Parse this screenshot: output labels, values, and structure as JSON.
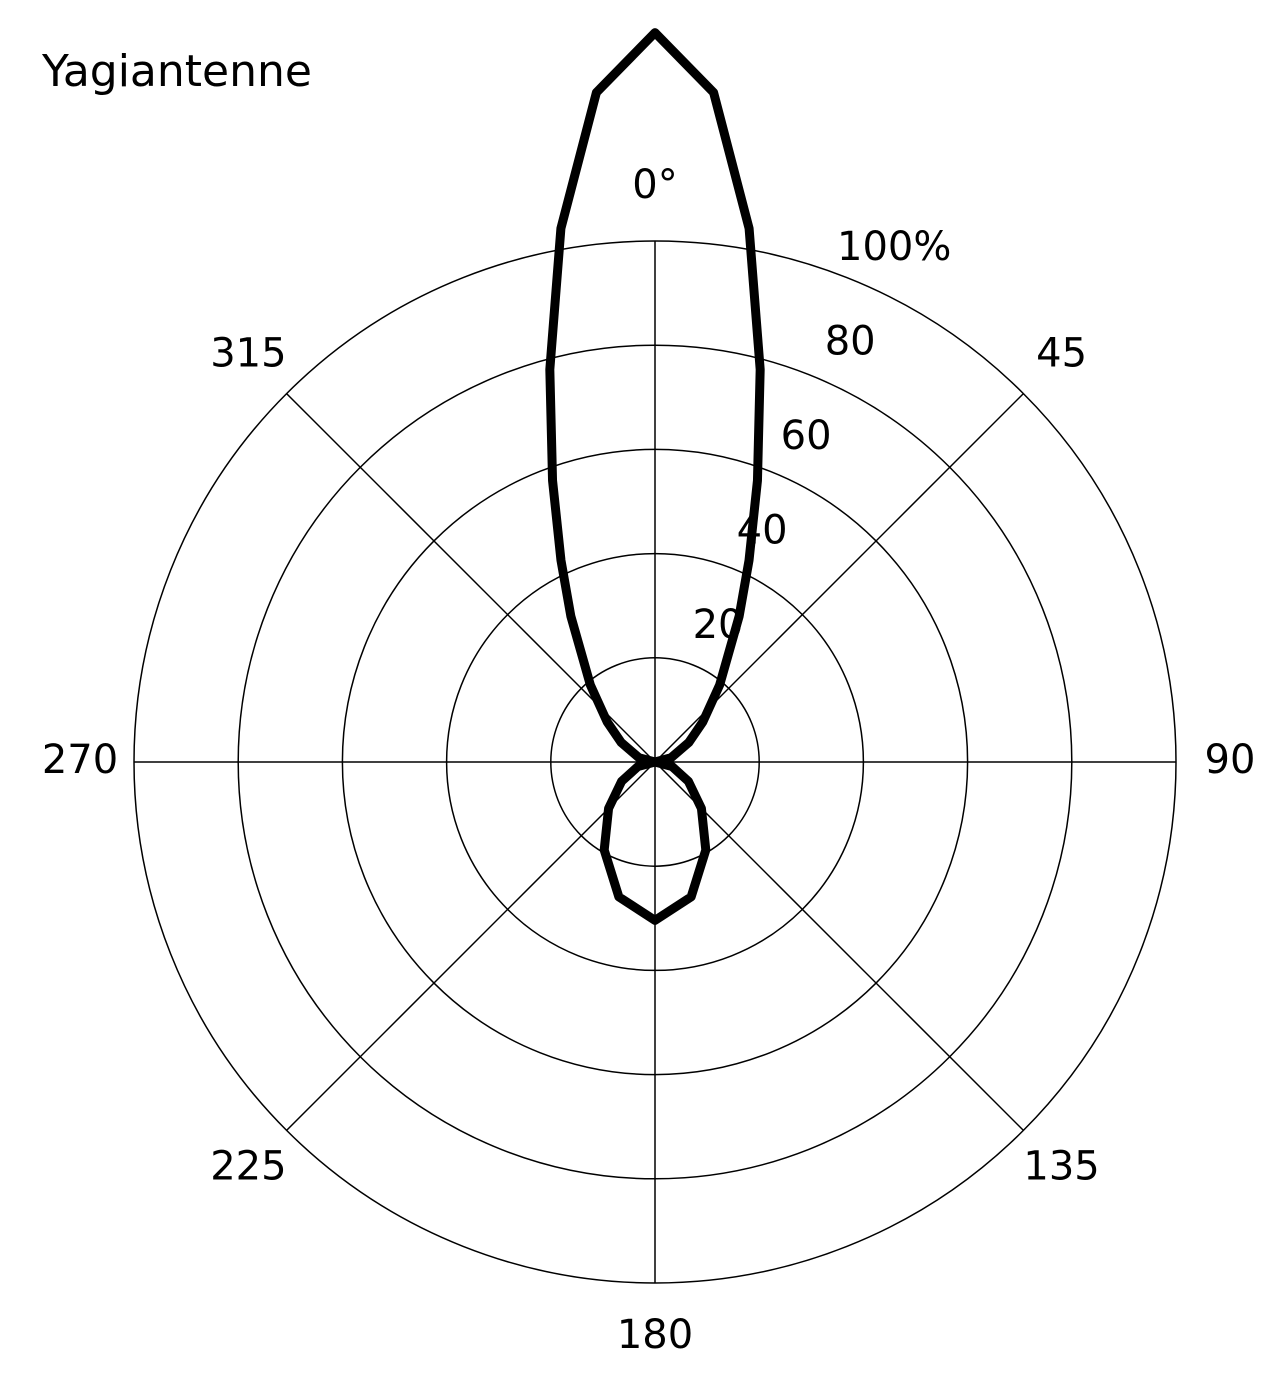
{
  "chart_data": {
    "type": "polar",
    "title": "Yagiantenne",
    "x": [
      0,
      5,
      10,
      15,
      20,
      25,
      30,
      40,
      50,
      60,
      75,
      90,
      105,
      120,
      135,
      150,
      165,
      180,
      195,
      210,
      225,
      240,
      255,
      270,
      285,
      300,
      310,
      320,
      330,
      335,
      340,
      345,
      350,
      355
    ],
    "series": [
      {
        "color": "#000000",
        "values": [
          140,
          129,
          104,
          78,
          57.5,
          42.7,
          32.3,
          19.3,
          12,
          7.5,
          3.2,
          0,
          3.4,
          7.4,
          12.6,
          19.5,
          26.8,
          30.4,
          26.8,
          19.5,
          12.6,
          7.4,
          3.4,
          0,
          3.2,
          7.5,
          12,
          19.3,
          32.3,
          42.7,
          57.5,
          78,
          104,
          129
        ]
      }
    ],
    "xlim": [
      0,
      360
    ],
    "xticks": [
      {
        "value": 0,
        "label": "0°"
      },
      45,
      90,
      135,
      180,
      225,
      270,
      315
    ],
    "ylim": [
      0,
      100
    ],
    "yticks": [
      20,
      40,
      60,
      80,
      {
        "value": 100,
        "label": "100%"
      }
    ],
    "grid": true
  }
}
